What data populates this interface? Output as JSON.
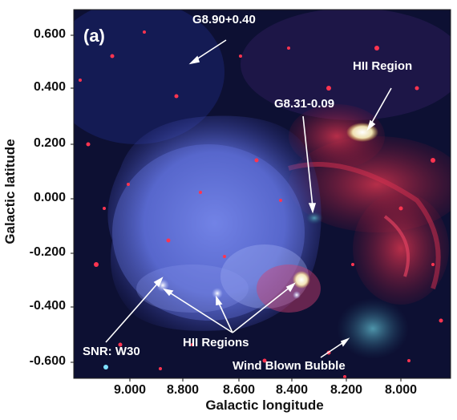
{
  "panel_label": "(a)",
  "axes": {
    "ylabel": "Galactic latitude",
    "xlabel": "Galactic longitude",
    "yticks": [
      "0.600",
      "0.400",
      "0.200",
      "0.000",
      "-0.200",
      "-0.400",
      "-0.600"
    ],
    "xticks": [
      "9.000",
      "8.800",
      "8.600",
      "8.400",
      "8.200",
      "8.000"
    ]
  },
  "annotations": {
    "g890": "G8.90+0.40",
    "hii_region": "HII Region",
    "g831": "G8.31-0.09",
    "snr": "SNR: W30",
    "hii_regions": "HII Regions",
    "wind_bubble": "Wind Blown Bubble"
  },
  "colors": {
    "background": "#0b0d2e",
    "blue_emission": "#5a6fe0",
    "red_emission": "#d23246",
    "annotation": "#ffffff"
  }
}
